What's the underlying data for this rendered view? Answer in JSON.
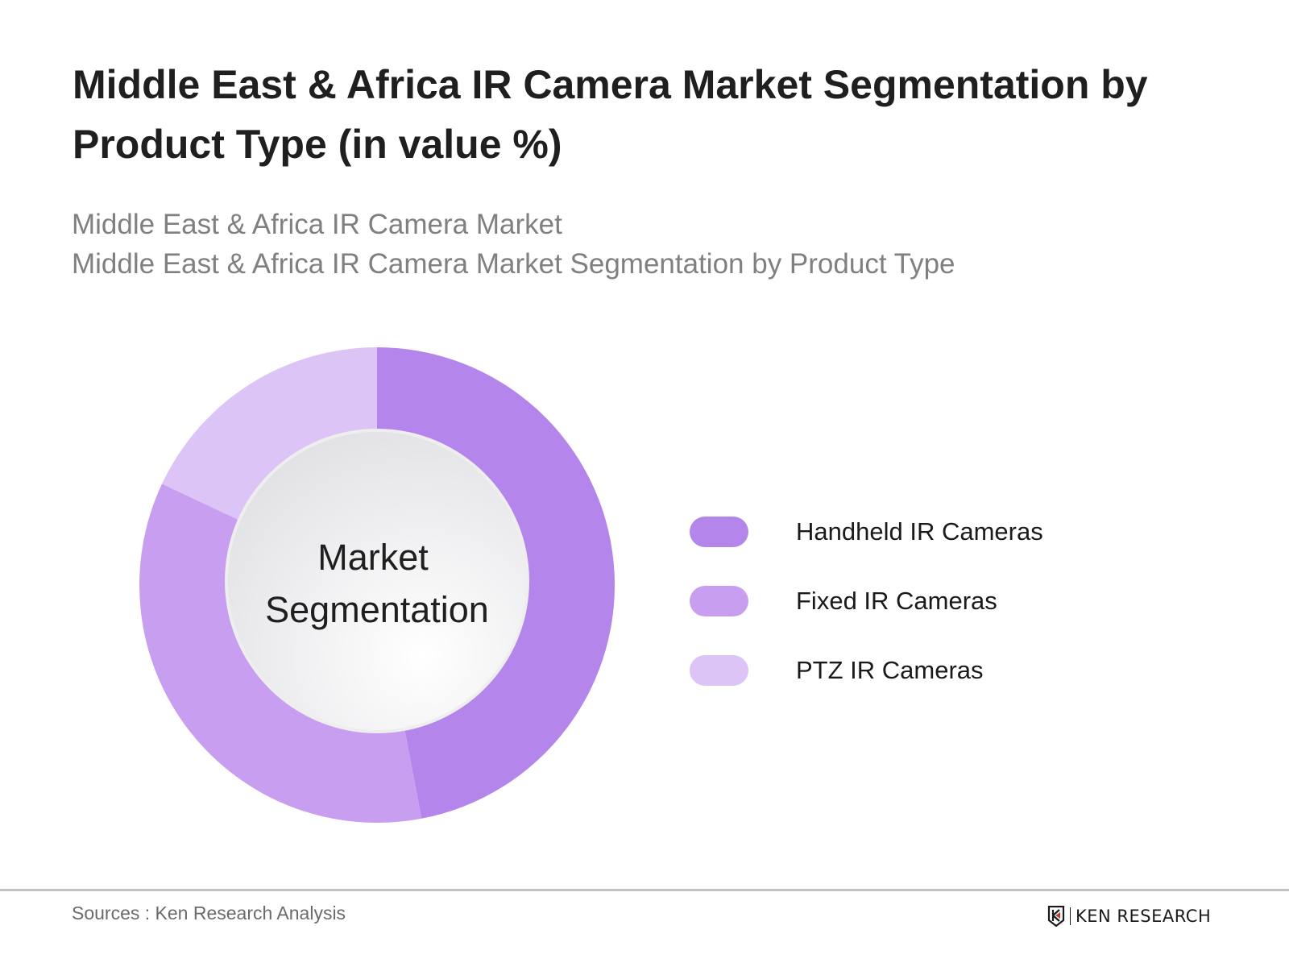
{
  "chart_data": {
    "type": "pie",
    "variant": "donut",
    "title": "Middle East & Africa IR Camera Market Segmentation by Product Type (in value %)",
    "subtitle_lines": [
      "Middle East & Africa IR Camera Market",
      "Middle East & Africa IR Camera Market Segmentation by Product Type"
    ],
    "center_label_lines": [
      "Market",
      "Segmentation"
    ],
    "categories": [
      "Handheld IR Cameras",
      "Fixed IR Cameras",
      "PTZ IR Cameras"
    ],
    "values": [
      47,
      35,
      18
    ],
    "colors": [
      "#b485eb",
      "#c89ff0",
      "#dcc4f7"
    ],
    "legend_position": "right"
  },
  "footer": {
    "sources": "Sources : Ken Research Analysis",
    "logo_text": "KEN RESEARCH"
  }
}
